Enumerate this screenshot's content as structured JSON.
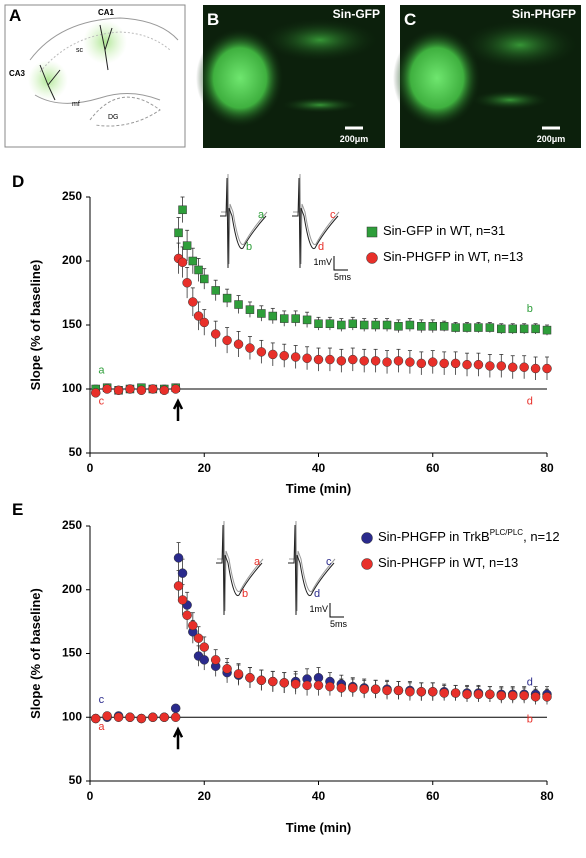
{
  "figure": {
    "panel_a": {
      "label": "A",
      "texts": [
        "CA1",
        "CA3",
        "sc",
        "mf",
        "DG"
      ]
    },
    "panel_b": {
      "label": "B",
      "title": "Sin-GFP",
      "scale": "200μm"
    },
    "panel_c": {
      "label": "C",
      "title": "Sin-PHGFP",
      "scale": "200μm"
    }
  },
  "chart_data": [
    {
      "type": "scatter",
      "panel_label": "D",
      "xlabel": "Time (min)",
      "ylabel": "Slope (% of baseline)",
      "xlim": [
        0,
        80
      ],
      "ylim": [
        50,
        250
      ],
      "xticks": [
        0,
        20,
        40,
        60,
        80
      ],
      "yticks": [
        50,
        100,
        150,
        200,
        250
      ],
      "hline": 100,
      "x": [
        1,
        3,
        5,
        7,
        9,
        11,
        13,
        15,
        15.5,
        16.2,
        17,
        18,
        19,
        20,
        22,
        24,
        26,
        28,
        30,
        32,
        34,
        36,
        38,
        40,
        42,
        44,
        46,
        48,
        50,
        52,
        54,
        56,
        58,
        60,
        62,
        64,
        66,
        68,
        70,
        72,
        74,
        76,
        78,
        80
      ],
      "series": [
        {
          "name": "Sin-GFP in WT, n=31",
          "color": "#2e9e3a",
          "marker": "square",
          "values": [
            100,
            101,
            99,
            100,
            101,
            100,
            100,
            101,
            222,
            240,
            212,
            200,
            193,
            186,
            177,
            171,
            166,
            162,
            159,
            157,
            155,
            155,
            154,
            151,
            151,
            150,
            151,
            150,
            150,
            150,
            149,
            150,
            149,
            149,
            149,
            148,
            148,
            148,
            148,
            147,
            147,
            147,
            147,
            146
          ],
          "errors": [
            3,
            3,
            3,
            3,
            3,
            3,
            3,
            3,
            12,
            10,
            12,
            10,
            9,
            8,
            8,
            7,
            7,
            6,
            6,
            6,
            6,
            6,
            6,
            5,
            5,
            5,
            5,
            5,
            5,
            5,
            5,
            5,
            5,
            5,
            4,
            4,
            4,
            4,
            4,
            4,
            4,
            4,
            4,
            4
          ]
        },
        {
          "name": "Sin-PHGFP in WT, n=13",
          "color": "#e8302a",
          "marker": "circle",
          "values": [
            97,
            100,
            99,
            100,
            99,
            100,
            99,
            100,
            202,
            199,
            183,
            168,
            157,
            152,
            143,
            138,
            135,
            132,
            129,
            127,
            126,
            125,
            124,
            123,
            123,
            122,
            123,
            122,
            122,
            121,
            122,
            121,
            120,
            121,
            120,
            120,
            119,
            119,
            118,
            118,
            117,
            117,
            116,
            116
          ],
          "errors": [
            3,
            3,
            3,
            3,
            3,
            3,
            3,
            3,
            12,
            12,
            12,
            11,
            11,
            10,
            10,
            10,
            10,
            9,
            9,
            9,
            9,
            9,
            9,
            9,
            9,
            9,
            9,
            9,
            9,
            9,
            9,
            9,
            9,
            9,
            9,
            9,
            9,
            9,
            9,
            9,
            9,
            9,
            9,
            9
          ]
        }
      ],
      "annotations": [
        {
          "text": "a",
          "color": "#2e9e3a"
        },
        {
          "text": "c",
          "color": "#e8302a"
        },
        {
          "text": "b",
          "color": "#2e9e3a"
        },
        {
          "text": "d",
          "color": "#e8302a"
        }
      ],
      "inset_labels": [
        {
          "text": "a",
          "color": "#2e9e3a"
        },
        {
          "text": "b",
          "color": "#2e9e3a"
        },
        {
          "text": "c",
          "color": "#e8302a"
        },
        {
          "text": "d",
          "color": "#e8302a"
        }
      ],
      "scale_labels": [
        "1mV",
        "5ms"
      ]
    },
    {
      "type": "scatter",
      "panel_label": "E",
      "xlabel": "Time (min)",
      "ylabel": "Slope (% of baseline)",
      "xlim": [
        0,
        80
      ],
      "ylim": [
        50,
        250
      ],
      "xticks": [
        0,
        20,
        40,
        60,
        80
      ],
      "yticks": [
        50,
        100,
        150,
        200,
        250
      ],
      "hline": 100,
      "x": [
        1,
        3,
        5,
        7,
        9,
        11,
        13,
        15,
        15.5,
        16.2,
        17,
        18,
        19,
        20,
        22,
        24,
        26,
        28,
        30,
        32,
        34,
        36,
        38,
        40,
        42,
        44,
        46,
        48,
        50,
        52,
        54,
        56,
        58,
        60,
        62,
        64,
        66,
        68,
        70,
        72,
        74,
        76,
        78,
        80
      ],
      "series": [
        {
          "name": "Sin-PHGFP in TrkB",
          "name_superscript": "PLC/PLC",
          "name_end": ", n=12",
          "color": "#2a2a8c",
          "marker": "circle",
          "values": [
            99,
            100,
            101,
            100,
            99,
            100,
            100,
            107,
            225,
            213,
            188,
            167,
            148,
            145,
            140,
            135,
            133,
            131,
            129,
            128,
            127,
            128,
            130,
            131,
            128,
            126,
            124,
            123,
            122,
            122,
            121,
            121,
            120,
            120,
            120,
            119,
            119,
            119,
            118,
            118,
            118,
            118,
            118,
            118
          ],
          "errors": [
            3,
            3,
            3,
            3,
            3,
            3,
            3,
            3,
            12,
            11,
            10,
            9,
            8,
            8,
            8,
            8,
            8,
            8,
            8,
            8,
            8,
            8,
            8,
            8,
            7,
            7,
            7,
            7,
            7,
            7,
            7,
            7,
            7,
            7,
            6,
            6,
            6,
            6,
            6,
            6,
            6,
            6,
            6,
            6
          ]
        },
        {
          "name": "Sin-PHGFP in WT, n=13",
          "color": "#e8302a",
          "marker": "circle",
          "values": [
            99,
            101,
            100,
            100,
            99,
            100,
            100,
            100,
            203,
            192,
            180,
            172,
            162,
            155,
            145,
            138,
            134,
            131,
            129,
            128,
            127,
            126,
            125,
            125,
            124,
            123,
            123,
            122,
            122,
            121,
            121,
            120,
            120,
            120,
            119,
            119,
            118,
            118,
            118,
            117,
            117,
            117,
            116,
            116
          ],
          "errors": [
            3,
            3,
            3,
            3,
            3,
            3,
            3,
            3,
            12,
            12,
            11,
            10,
            9,
            8,
            8,
            8,
            8,
            8,
            8,
            8,
            8,
            8,
            8,
            8,
            7,
            7,
            7,
            7,
            7,
            7,
            7,
            7,
            7,
            7,
            6,
            6,
            6,
            6,
            6,
            6,
            6,
            6,
            6,
            6
          ]
        }
      ],
      "annotations": [
        {
          "text": "c",
          "color": "#2a2a8c"
        },
        {
          "text": "a",
          "color": "#e8302a"
        },
        {
          "text": "d",
          "color": "#2a2a8c"
        },
        {
          "text": "b",
          "color": "#e8302a"
        }
      ],
      "inset_labels": [
        {
          "text": "a",
          "color": "#e8302a"
        },
        {
          "text": "b",
          "color": "#e8302a"
        },
        {
          "text": "c",
          "color": "#2a2a8c"
        },
        {
          "text": "d",
          "color": "#2a2a8c"
        }
      ],
      "scale_labels": [
        "1mV",
        "5ms"
      ]
    }
  ]
}
